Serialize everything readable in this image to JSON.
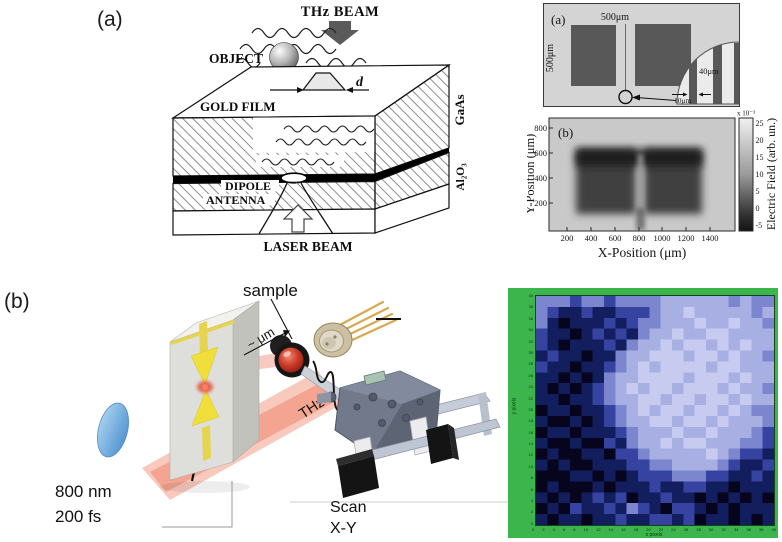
{
  "figure": {
    "panel_a": {
      "label": "(a)",
      "schematic": {
        "thz_beam": "THz BEAM",
        "object_label": "OBJECT",
        "gold_film": "GOLD FILM",
        "gap_label": "d",
        "dipole_word1": "DIPOLE",
        "dipole_word2": "ANTENNA",
        "laser_beam": "LASER BEAM",
        "substrate_top": "GaAs",
        "substrate_bottom": "Al₂O₃"
      },
      "mask": {
        "label": "(a)",
        "top_scale": "500μm",
        "left_scale": "500μm",
        "inset_width": "40μm",
        "inset_gap": "10μm"
      }
    },
    "panel_b": {
      "label": "(b)",
      "setup": {
        "sample_label": "sample",
        "gap_label": "~ μm",
        "thz_label": "THz",
        "wavelength": "800 nm",
        "pulse_width": "200 fs",
        "scan_line1": "Scan",
        "scan_line2": "X-Y"
      }
    }
  },
  "chart_data": [
    {
      "type": "heatmap",
      "panel": "a (b)",
      "label": "(b)",
      "xlabel": "X-Position (μm)",
      "ylabel": "Y-Position (μm)",
      "x_tick_labels": [
        "200",
        "400",
        "600",
        "800",
        "1000",
        "1200",
        "1400"
      ],
      "y_tick_labels": [
        "800",
        "600",
        "400",
        "200"
      ],
      "x_range_um": [
        50,
        1550
      ],
      "y_range_um": [
        100,
        850
      ],
      "colorbar_exp": "x 10⁻³",
      "colorbar_ticks": [
        "25",
        "20",
        "15",
        "10",
        "5",
        "0",
        "-5"
      ],
      "colorbar_label": "Electric Field (arb. un.)",
      "background_value": 22,
      "square_value": -4,
      "description": "Grayscale raster scan: two dark low-field squares (x≈250-720μm and x≈790-1280μm, y≈200-560μm) on light background, darkest band along the square tops, faint vertical gap near x=750μm."
    },
    {
      "type": "heatmap",
      "panel": "b",
      "xlabel": "x pixels",
      "ylabel": "y pixels",
      "x_ticks": [
        0,
        2,
        4,
        6,
        8,
        10,
        12,
        14,
        16,
        18,
        20,
        22,
        24,
        26,
        28,
        30,
        32,
        34,
        36,
        38,
        40
      ],
      "y_ticks": [
        0,
        2,
        4,
        6,
        8,
        10,
        12,
        14,
        16,
        18,
        20,
        22,
        24,
        26,
        28,
        30,
        32,
        34,
        36,
        38,
        40
      ],
      "frame_color": "#3db54d",
      "palette": [
        "#06051d",
        "#131e5e",
        "#3743a0",
        "#7c86cf",
        "#a8afe2",
        "#c7cbf0"
      ],
      "grid_rows": [
        "333233233334444443433",
        "321121122234454444434",
        "310111212334445445443",
        "211012121344544554444",
        "210111213445455454544",
        "121101134455545545443",
        "211011234545555455444",
        "110101344555545554544",
        "101012345455455545443",
        "110112344554554554544",
        "011011234545545545433",
        "100101234455455454443",
        "011011123444544544432",
        "100100213445455444332",
        "010011022344444543221",
        "101001112233444432112",
        "000110101222333221121",
        "010001011121122110111",
        "101012120112110101010",
        "010211213210221010111",
        "101101121122120110101"
      ],
      "description": "Pixelated THz scan: light lavender blob upper right, dark navy regions upper-left corner, left edge and lower-left, dark diagonal band toward lower right corner."
    }
  ]
}
